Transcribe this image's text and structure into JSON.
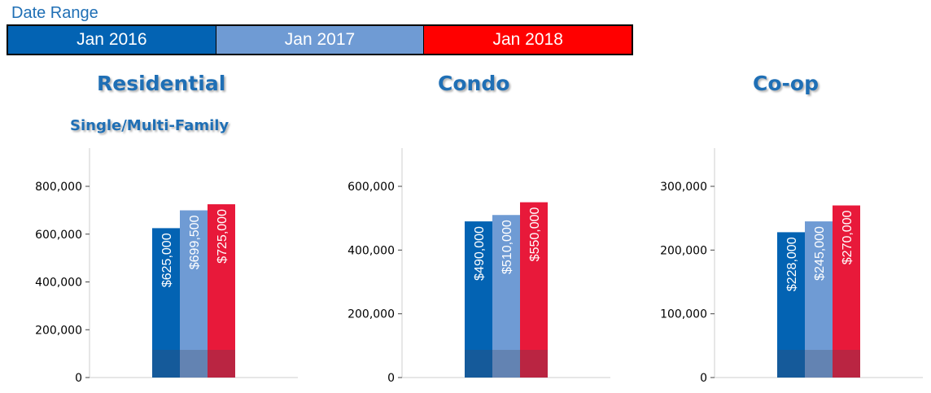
{
  "date_range": {
    "title": "Date Range",
    "periods": [
      {
        "label": "Jan 2016",
        "color": "#0363b3",
        "text_color": "#ffffff"
      },
      {
        "label": "Jan 2017",
        "color": "#6f9bd4",
        "text_color": "#ffffff"
      },
      {
        "label": "Jan 2018",
        "color": "#ff0000",
        "text_color": "#ffffff"
      }
    ]
  },
  "bar_colors": [
    "#0363b3",
    "#6f9bd4",
    "#e8193a"
  ],
  "chart_data": [
    {
      "type": "bar",
      "title": "Residential",
      "subtitle": "Single/Multi-Family",
      "categories": [
        "Jan 2016",
        "Jan 2017",
        "Jan 2018"
      ],
      "values": [
        625000,
        699500,
        725000
      ],
      "data_labels": [
        "$625,000",
        "$699,500",
        "$725,000"
      ],
      "yticks": [
        0,
        200000,
        400000,
        600000,
        800000
      ],
      "ytick_labels": [
        "0",
        "200,000",
        "400,000",
        "600,000",
        "800,000"
      ],
      "ylim": [
        0,
        960000
      ],
      "grid": false
    },
    {
      "type": "bar",
      "title": "Condo",
      "subtitle": "",
      "categories": [
        "Jan 2016",
        "Jan 2017",
        "Jan 2018"
      ],
      "values": [
        490000,
        510000,
        550000
      ],
      "data_labels": [
        "$490,000",
        "$510,000",
        "$550,000"
      ],
      "yticks": [
        0,
        200000,
        400000,
        600000
      ],
      "ytick_labels": [
        "0",
        "200,000",
        "400,000",
        "600,000"
      ],
      "ylim": [
        0,
        720000
      ],
      "grid": false
    },
    {
      "type": "bar",
      "title": "Co-op",
      "subtitle": "",
      "categories": [
        "Jan 2016",
        "Jan 2017",
        "Jan 2018"
      ],
      "values": [
        228000,
        245000,
        270000
      ],
      "data_labels": [
        "$228,000",
        "$245,000",
        "$270,000"
      ],
      "yticks": [
        0,
        100000,
        200000,
        300000
      ],
      "ytick_labels": [
        "0",
        "100,000",
        "200,000",
        "300,000"
      ],
      "ylim": [
        0,
        360000
      ],
      "grid": false
    }
  ]
}
